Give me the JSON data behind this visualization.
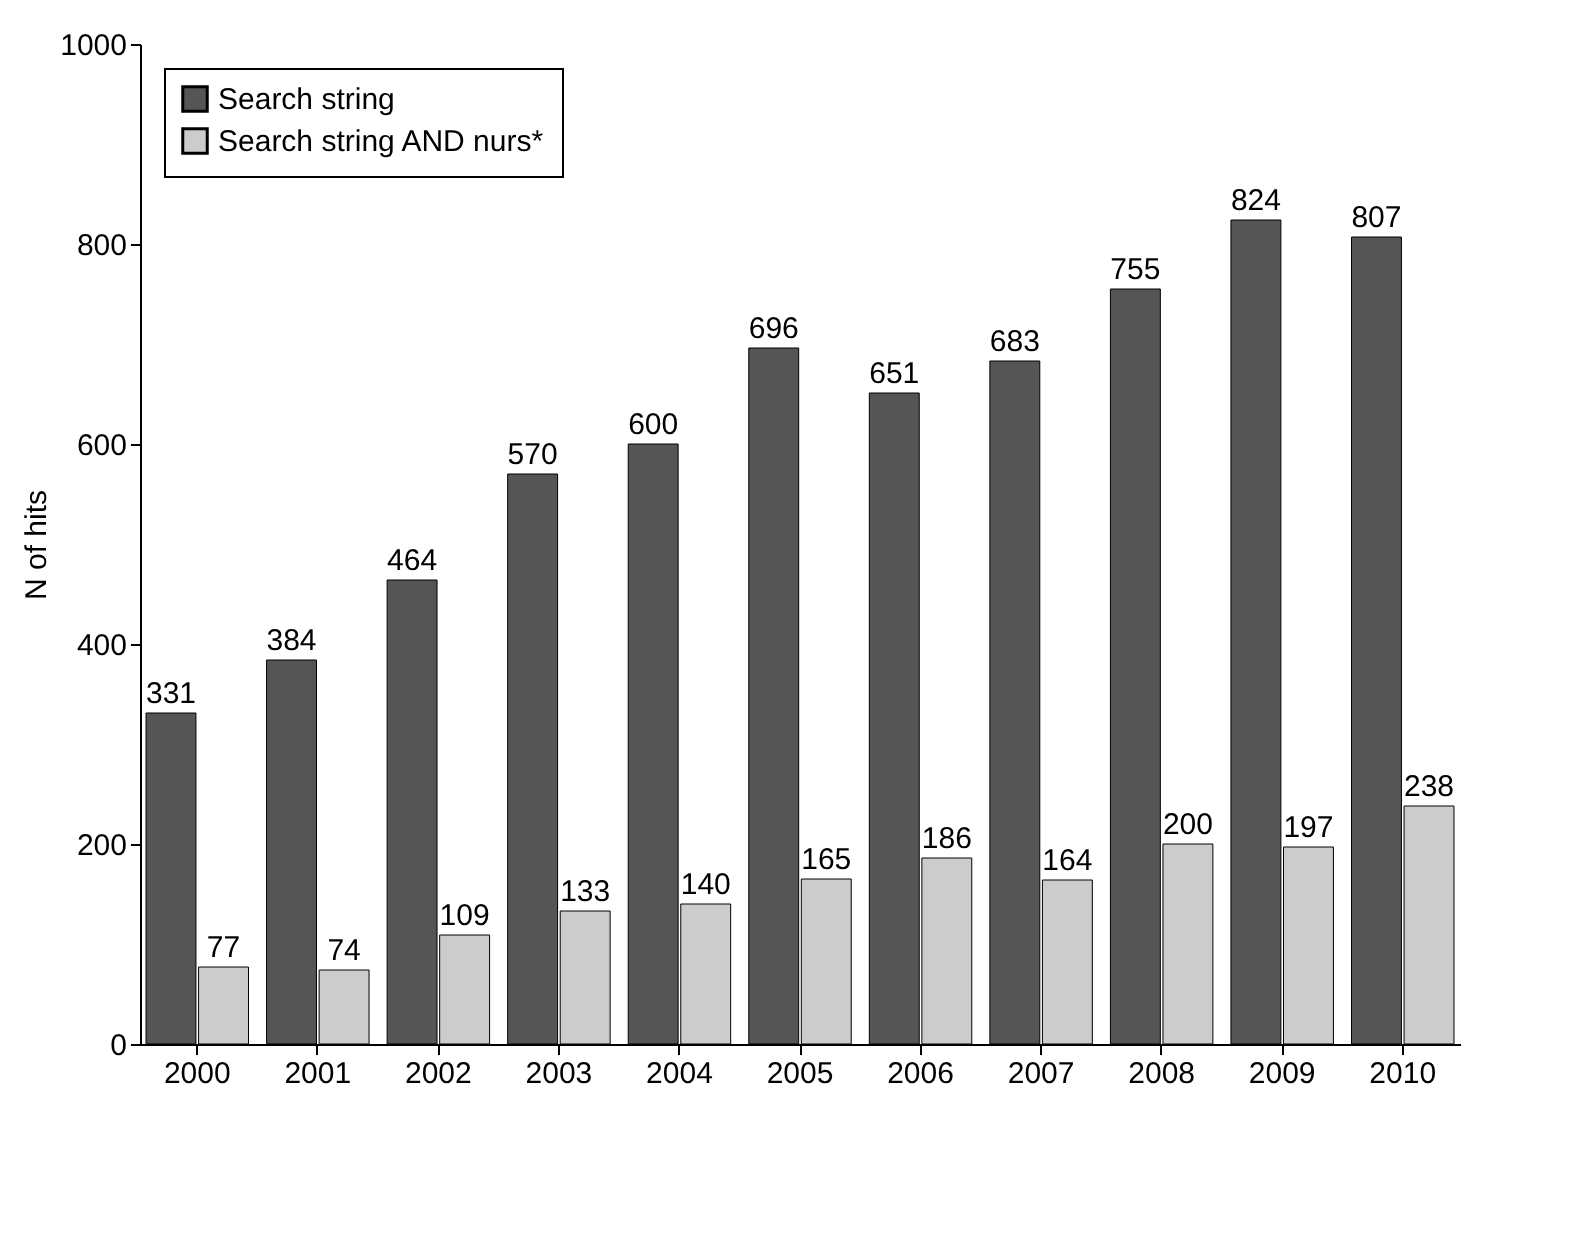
{
  "chart_data": {
    "type": "bar",
    "ylabel": "N of hits",
    "categories": [
      "2000",
      "2001",
      "2002",
      "2003",
      "2004",
      "2005",
      "2006",
      "2007",
      "2008",
      "2009",
      "2010"
    ],
    "series": [
      {
        "name": "Search string",
        "color": "#555555",
        "values": [
          331,
          384,
          464,
          570,
          600,
          696,
          651,
          683,
          755,
          824,
          807
        ]
      },
      {
        "name": "Search string AND nurs*",
        "color": "#cccccc",
        "values": [
          77,
          74,
          109,
          133,
          140,
          165,
          186,
          164,
          200,
          197,
          238
        ]
      }
    ],
    "ylim": [
      0,
      1000
    ],
    "yticks": [
      0,
      200,
      400,
      600,
      800,
      1000
    ],
    "grid": false,
    "legend": "top left",
    "data_labels": true
  }
}
